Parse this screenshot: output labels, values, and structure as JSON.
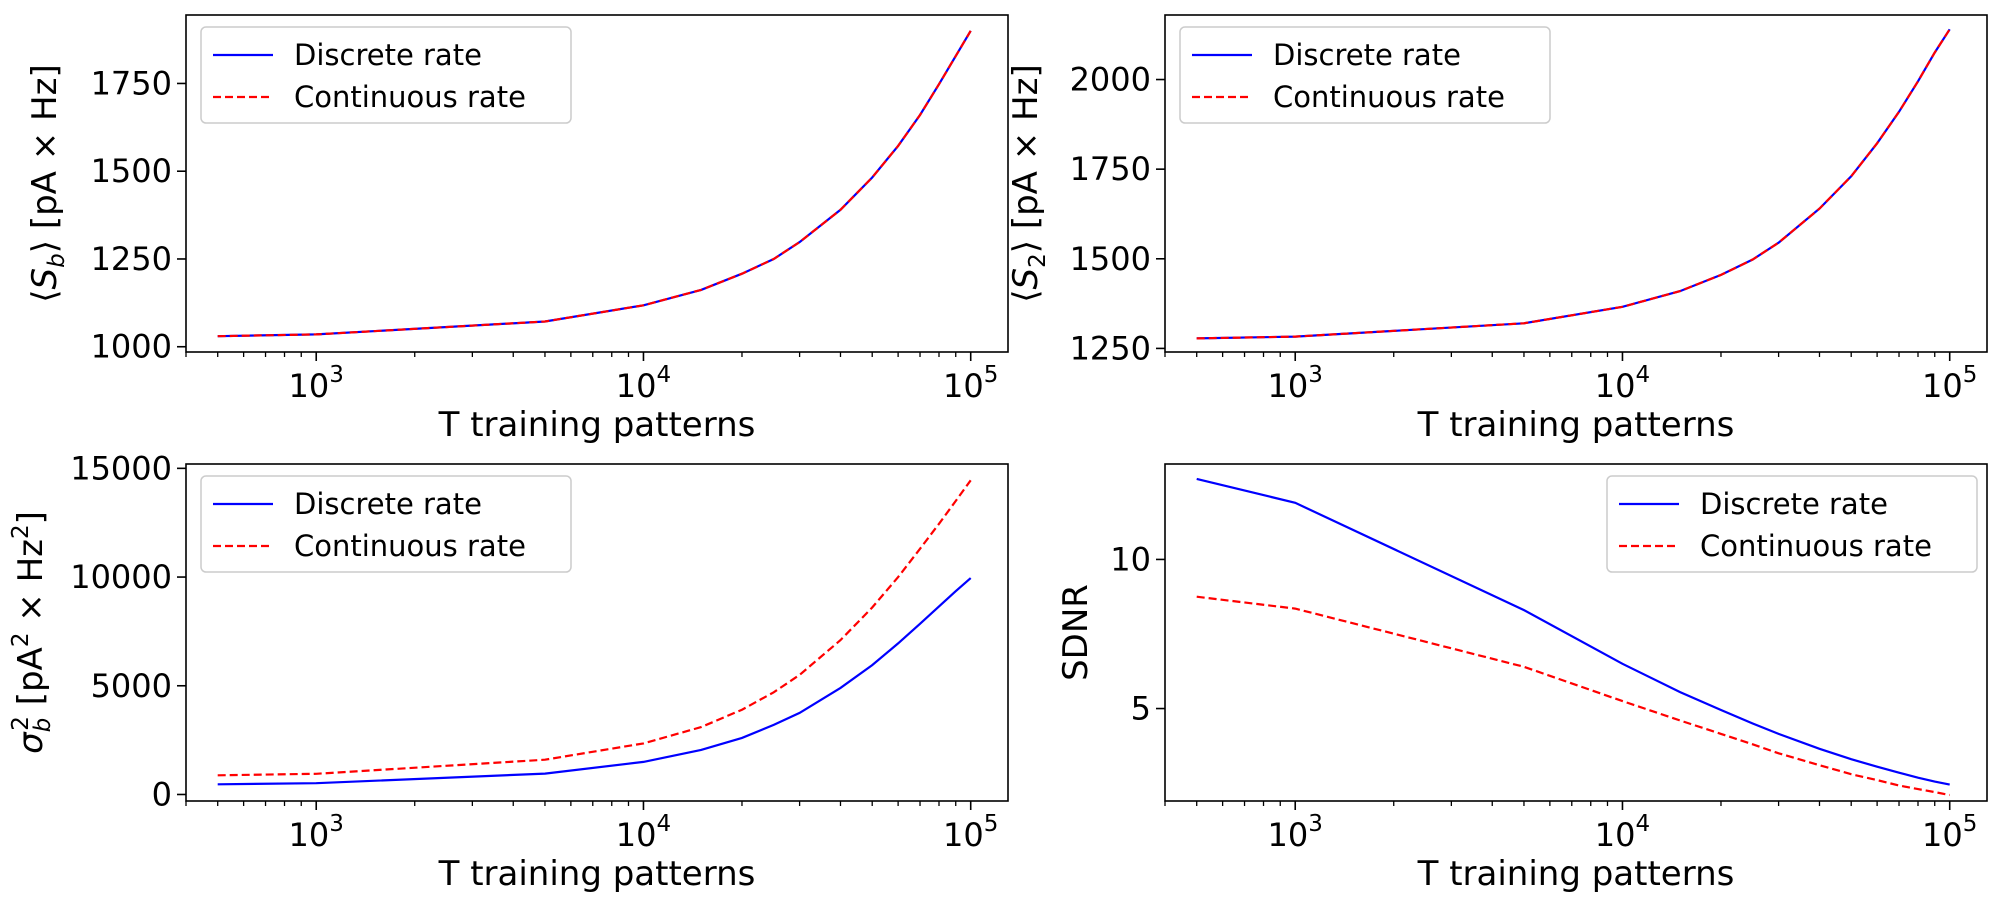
{
  "chart_data": [
    {
      "type": "line",
      "xlabel": "T training patterns",
      "ylabel": "⟨S_b⟩ [pA × Hz]",
      "xscale": "log",
      "xlim": [
        400,
        130000
      ],
      "ylim": [
        985,
        1945
      ],
      "xticks": [
        1000,
        10000,
        100000
      ],
      "xtick_labels": [
        {
          "base": "10",
          "exp": "3"
        },
        {
          "base": "10",
          "exp": "4"
        },
        {
          "base": "10",
          "exp": "5"
        }
      ],
      "yticks": [
        1000,
        1250,
        1500,
        1750
      ],
      "ytick_labels": [
        "1000",
        "1250",
        "1500",
        "1750"
      ],
      "legend_position": "upper-left",
      "x": [
        500,
        1000,
        5000,
        10000,
        15000,
        20000,
        25000,
        30000,
        40000,
        50000,
        60000,
        70000,
        80000,
        90000,
        100000
      ],
      "series": [
        {
          "name": "Discrete rate",
          "color": "#0000ff",
          "style": "solid",
          "values": [
            1030,
            1035,
            1072,
            1118,
            1162,
            1208,
            1250,
            1298,
            1390,
            1482,
            1572,
            1660,
            1748,
            1828,
            1900
          ]
        },
        {
          "name": "Continuous rate",
          "color": "#ff0000",
          "style": "dashed",
          "values": [
            1030,
            1035,
            1072,
            1118,
            1162,
            1208,
            1250,
            1298,
            1390,
            1482,
            1572,
            1660,
            1748,
            1828,
            1900
          ]
        }
      ]
    },
    {
      "type": "line",
      "xlabel": "T training patterns",
      "ylabel": "⟨S_2⟩ [pA × Hz]",
      "xscale": "log",
      "xlim": [
        400,
        130000
      ],
      "ylim": [
        1240,
        2180
      ],
      "xticks": [
        1000,
        10000,
        100000
      ],
      "xtick_labels": [
        {
          "base": "10",
          "exp": "3"
        },
        {
          "base": "10",
          "exp": "4"
        },
        {
          "base": "10",
          "exp": "5"
        }
      ],
      "yticks": [
        1250,
        1500,
        1750,
        2000
      ],
      "ytick_labels": [
        "1250",
        "1500",
        "1750",
        "2000"
      ],
      "legend_position": "upper-left",
      "x": [
        500,
        1000,
        5000,
        10000,
        15000,
        20000,
        25000,
        30000,
        40000,
        50000,
        60000,
        70000,
        80000,
        90000,
        100000
      ],
      "series": [
        {
          "name": "Discrete rate",
          "color": "#0000ff",
          "style": "solid",
          "values": [
            1278,
            1283,
            1320,
            1366,
            1410,
            1455,
            1498,
            1545,
            1640,
            1730,
            1822,
            1910,
            1995,
            2075,
            2140
          ]
        },
        {
          "name": "Continuous rate",
          "color": "#ff0000",
          "style": "dashed",
          "values": [
            1278,
            1283,
            1320,
            1366,
            1410,
            1455,
            1498,
            1545,
            1640,
            1730,
            1822,
            1910,
            1995,
            2075,
            2140
          ]
        }
      ]
    },
    {
      "type": "line",
      "xlabel": "T training patterns",
      "ylabel": "σ_b² [pA² × Hz²]",
      "xscale": "log",
      "xlim": [
        400,
        130000
      ],
      "ylim": [
        -300,
        15200
      ],
      "xticks": [
        1000,
        10000,
        100000
      ],
      "xtick_labels": [
        {
          "base": "10",
          "exp": "3"
        },
        {
          "base": "10",
          "exp": "4"
        },
        {
          "base": "10",
          "exp": "5"
        }
      ],
      "yticks": [
        0,
        5000,
        10000,
        15000
      ],
      "ytick_labels": [
        "0",
        "5000",
        "10000",
        "15000"
      ],
      "legend_position": "upper-left",
      "x": [
        500,
        1000,
        5000,
        10000,
        15000,
        20000,
        25000,
        30000,
        40000,
        50000,
        60000,
        70000,
        80000,
        90000,
        100000
      ],
      "series": [
        {
          "name": "Discrete rate",
          "color": "#0000ff",
          "style": "solid",
          "values": [
            470,
            520,
            960,
            1500,
            2050,
            2600,
            3200,
            3750,
            4900,
            5950,
            6950,
            7850,
            8650,
            9350,
            9950
          ]
        },
        {
          "name": "Continuous rate",
          "color": "#ff0000",
          "style": "dashed",
          "values": [
            880,
            950,
            1600,
            2350,
            3100,
            3900,
            4700,
            5500,
            7100,
            8600,
            10000,
            11300,
            12450,
            13500,
            14450
          ]
        }
      ]
    },
    {
      "type": "line",
      "xlabel": "T training patterns",
      "ylabel": "SDNR",
      "xscale": "log",
      "xlim": [
        400,
        130000
      ],
      "ylim": [
        1.9,
        13.2
      ],
      "xticks": [
        1000,
        10000,
        100000
      ],
      "xtick_labels": [
        {
          "base": "10",
          "exp": "3"
        },
        {
          "base": "10",
          "exp": "4"
        },
        {
          "base": "10",
          "exp": "5"
        }
      ],
      "yticks": [
        5,
        10
      ],
      "ytick_labels": [
        "5",
        "10"
      ],
      "legend_position": "upper-right",
      "x": [
        500,
        1000,
        5000,
        10000,
        15000,
        20000,
        25000,
        30000,
        40000,
        50000,
        60000,
        70000,
        80000,
        90000,
        100000
      ],
      "series": [
        {
          "name": "Discrete rate",
          "color": "#0000ff",
          "style": "solid",
          "values": [
            12.7,
            11.9,
            8.3,
            6.5,
            5.55,
            4.95,
            4.5,
            4.15,
            3.65,
            3.3,
            3.05,
            2.85,
            2.68,
            2.55,
            2.45
          ]
        },
        {
          "name": "Continuous rate",
          "color": "#ff0000",
          "style": "dashed",
          "values": [
            8.75,
            8.35,
            6.4,
            5.25,
            4.6,
            4.15,
            3.8,
            3.5,
            3.1,
            2.8,
            2.6,
            2.42,
            2.3,
            2.2,
            2.1
          ]
        }
      ]
    }
  ]
}
